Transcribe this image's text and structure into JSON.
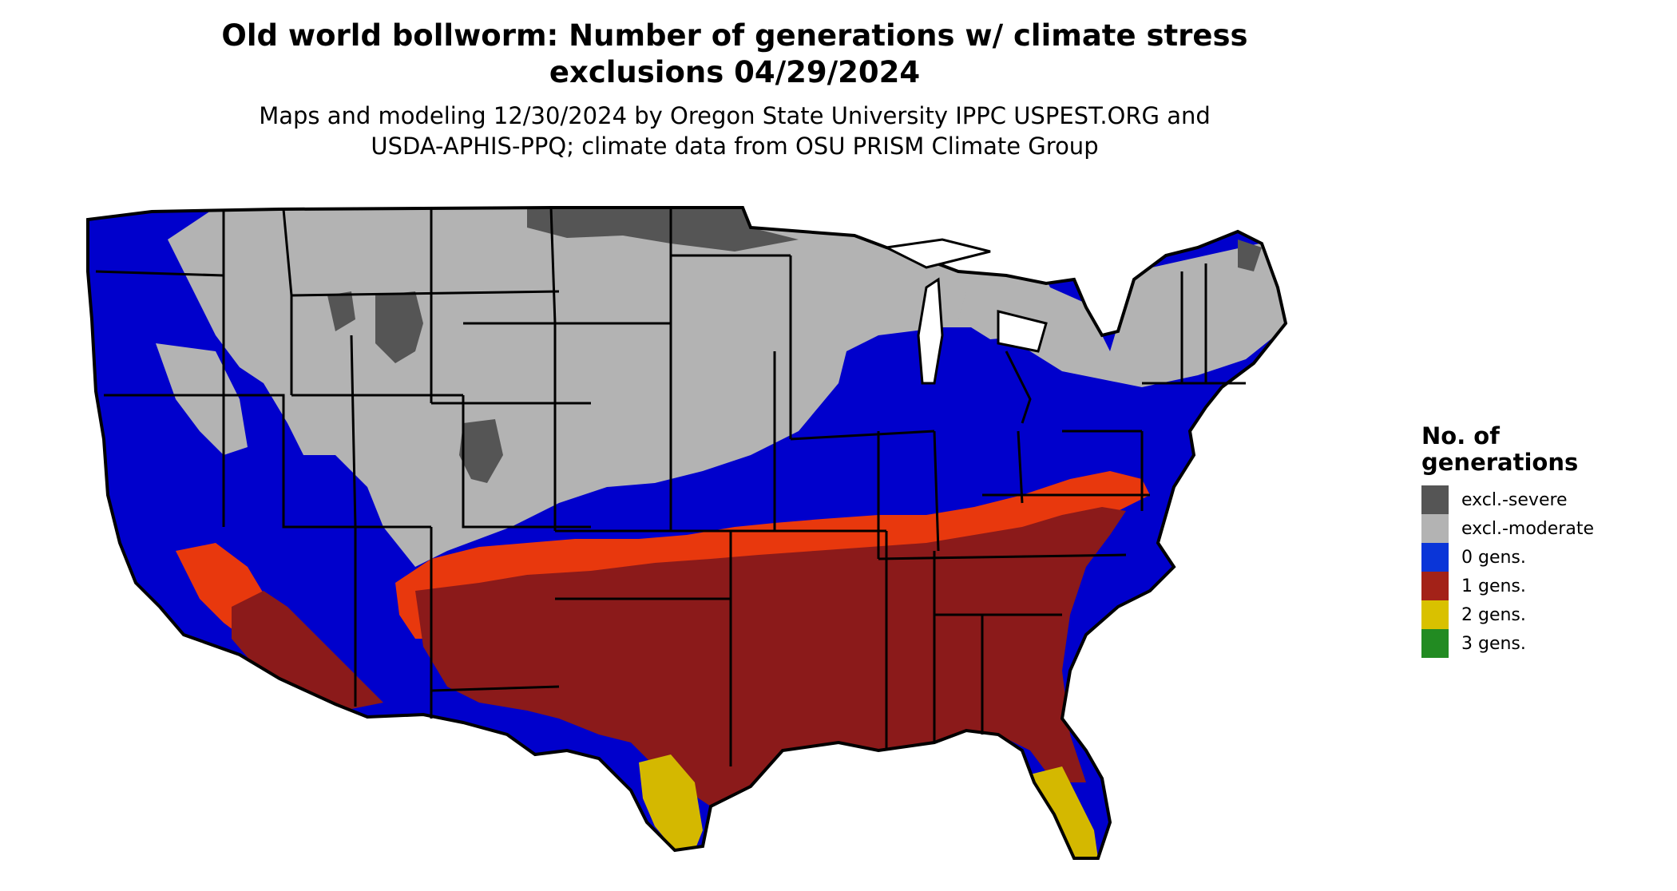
{
  "title_line1": "Old world bollworm: Number of generations w/ climate stress",
  "title_line2": "exclusions 04/29/2024",
  "subtitle_line1": "Maps and modeling 12/30/2024 by Oregon State University IPPC USPEST.ORG and",
  "subtitle_line2": "USDA-APHIS-PPQ; climate data from OSU PRISM Climate Group",
  "legend": {
    "title_line1": "No. of",
    "title_line2": "generations",
    "items": [
      {
        "label": "excl.-severe",
        "color": "#555555"
      },
      {
        "label": "excl.-moderate",
        "color": "#b3b3b3"
      },
      {
        "label": "0 gens.",
        "color": "#0a35d8"
      },
      {
        "label": "1 gens.",
        "color": "#a32218"
      },
      {
        "label": "2 gens.",
        "color": "#d9c100"
      },
      {
        "label": "3 gens.",
        "color": "#228b22"
      }
    ]
  },
  "map_colors": {
    "excl_severe": "#555555",
    "excl_moderate": "#b3b3b3",
    "zero_gens": "#0000cc",
    "one_gen_dark": "#8b1a1a",
    "one_gen_light": "#e8380d",
    "two_gens": "#d4b800",
    "border": "#000000"
  }
}
